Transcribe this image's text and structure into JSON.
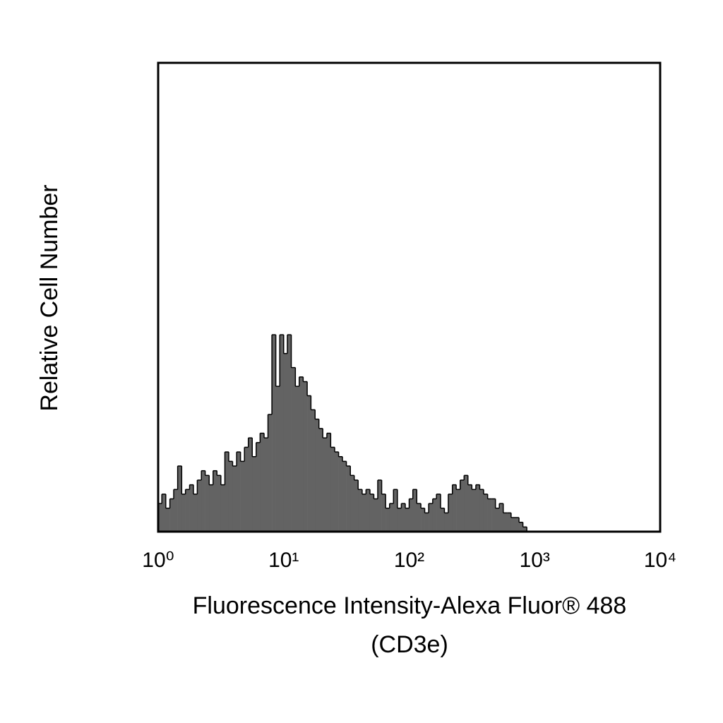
{
  "chart_data": {
    "type": "histogram",
    "xlabel": [
      "Fluorescence Intensity-Alexa Fluor® 488",
      "(CD3e)"
    ],
    "ylabel": "Relative Cell Number",
    "x_scale": "log",
    "xlim": [
      1,
      10000
    ],
    "ylim": [
      0,
      100
    ],
    "xticks": [
      {
        "value": 1,
        "label": "10⁰"
      },
      {
        "value": 10,
        "label": "10¹"
      },
      {
        "value": 100,
        "label": "10²"
      },
      {
        "value": 1000,
        "label": "10³"
      },
      {
        "value": 10000,
        "label": "10⁴"
      }
    ],
    "color": "#636363",
    "bins": [
      1,
      1.07,
      1.15,
      1.24,
      1.33,
      1.43,
      1.54,
      1.65,
      1.78,
      1.91,
      2.05,
      2.21,
      2.37,
      2.55,
      2.74,
      2.94,
      3.16,
      3.4,
      3.65,
      3.92,
      4.22,
      4.53,
      4.87,
      5.23,
      5.62,
      6.04,
      6.49,
      6.98,
      7.5,
      8.06,
      8.66,
      9.31,
      10,
      10.7,
      11.5,
      12.4,
      13.3,
      14.3,
      15.4,
      16.5,
      17.8,
      19.1,
      20.5,
      22.1,
      23.7,
      25.5,
      27.4,
      29.4,
      31.6,
      34,
      36.5,
      39.2,
      42.2,
      45.3,
      48.7,
      52.3,
      56.2,
      60.4,
      64.9,
      69.8,
      75,
      80.6,
      86.6,
      93.1,
      100,
      107,
      115,
      124,
      133,
      143,
      154,
      165,
      178,
      191,
      205,
      221,
      237,
      255,
      274,
      294,
      316,
      340,
      365,
      392,
      422,
      453,
      487,
      523,
      562,
      604,
      649,
      698,
      750,
      806,
      866,
      931,
      1000
    ],
    "values": [
      6,
      8,
      5,
      7,
      9,
      14,
      8,
      9,
      10,
      8,
      11,
      13,
      12,
      10,
      13,
      12,
      10,
      17,
      15,
      14,
      17,
      15,
      18,
      20,
      16,
      19,
      21,
      20,
      25,
      42,
      31,
      42,
      38,
      42,
      35,
      31,
      33,
      32,
      29,
      26,
      24,
      22,
      20,
      21,
      18,
      17,
      16,
      15,
      14,
      12,
      11,
      9,
      8,
      9,
      8,
      7,
      11,
      8,
      5,
      6,
      9,
      5,
      6,
      5,
      7,
      9,
      6,
      5,
      4,
      6,
      7,
      8,
      5,
      4,
      8,
      10,
      9,
      11,
      12,
      10,
      9,
      10,
      9,
      8,
      7,
      7,
      5,
      6,
      4,
      4,
      3,
      3,
      2,
      1,
      0,
      0
    ]
  }
}
